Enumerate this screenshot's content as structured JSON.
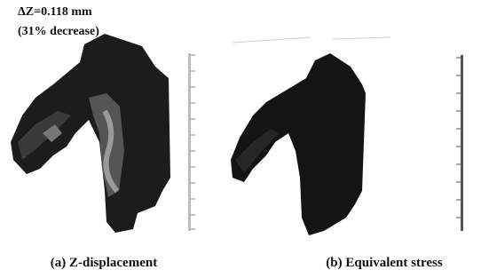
{
  "annotation": {
    "lines": [
      "ΔZ=0.118 mm",
      "(31% decrease)"
    ]
  },
  "panels": [
    {
      "caption": "(a) Z-displacement"
    },
    {
      "caption": "(b) Equivalent stress"
    }
  ]
}
